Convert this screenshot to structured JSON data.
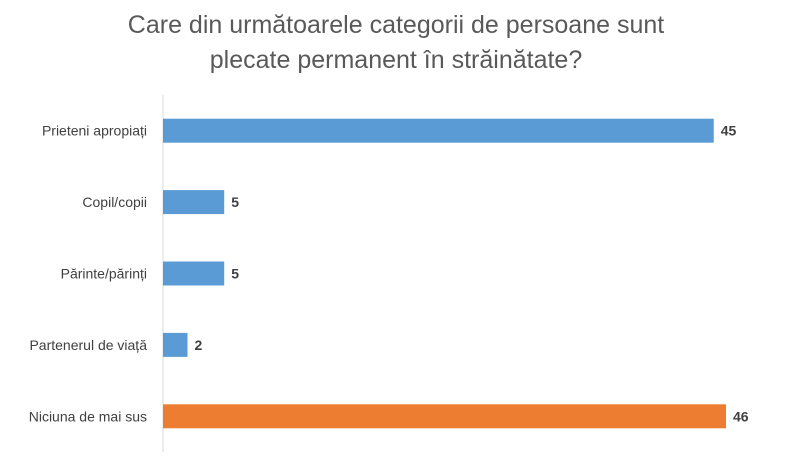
{
  "chart_data": {
    "type": "bar",
    "orientation": "horizontal",
    "title_lines": [
      "Care din următoarele categorii de persoane sunt",
      "plecate permanent în străinătate?"
    ],
    "categories": [
      "Prieteni apropiați",
      "Copil/copii",
      "Părinte/părinți",
      "Partenerul de viață",
      "Niciuna de mai sus"
    ],
    "values": [
      45,
      5,
      5,
      2,
      46
    ],
    "data_labels": [
      "45",
      "5",
      "5",
      "2",
      "46"
    ],
    "bar_colors": [
      "#5b9bd5",
      "#5b9bd5",
      "#5b9bd5",
      "#5b9bd5",
      "#ed7d31"
    ],
    "xlim": [
      0,
      46
    ],
    "grid": false,
    "legend": "none"
  }
}
